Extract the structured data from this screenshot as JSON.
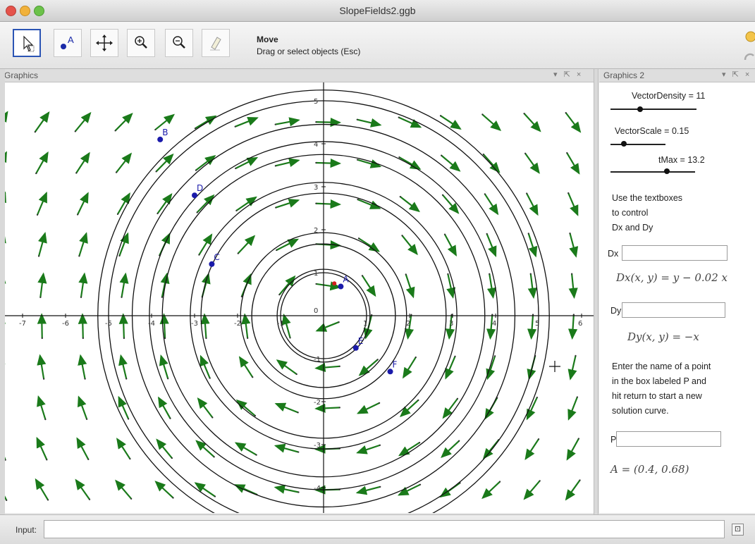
{
  "window": {
    "title": "SlopeFields2.ggb"
  },
  "toolbar": {
    "tools": [
      {
        "name": "move-tool",
        "icon": "arrow-pointer-icon",
        "active": true
      },
      {
        "name": "point-tool",
        "icon": "point-a-icon",
        "active": false
      },
      {
        "name": "move-graphics-view-tool",
        "icon": "move-cross-icon",
        "active": false
      },
      {
        "name": "zoom-in-tool",
        "icon": "zoom-in-icon",
        "active": false
      },
      {
        "name": "zoom-out-tool",
        "icon": "zoom-out-icon",
        "active": false
      },
      {
        "name": "eraser-tool",
        "icon": "eraser-icon",
        "active": false
      }
    ],
    "current_tool_label": "Move",
    "current_tool_help": "Drag or select objects (Esc)"
  },
  "graphics_panel": {
    "title": "Graphics",
    "controls": "▾ ⇱ ×",
    "x_ticks": [
      "-7",
      "-6",
      "-5",
      "-4",
      "-3",
      "-2",
      "-1",
      "1",
      "2",
      "3",
      "4",
      "5",
      "6"
    ],
    "y_ticks_pos": [
      "1",
      "2",
      "3",
      "4",
      "5"
    ],
    "y_ticks_neg": [
      "-1",
      "-2",
      "-3",
      "-4"
    ],
    "origin_label": "0",
    "points": [
      {
        "label": "A",
        "x": 0.4,
        "y": 0.68,
        "color": "#1a1aaa"
      },
      {
        "label": "B",
        "x": -3.8,
        "y": 4.1,
        "color": "#1a1aaa"
      },
      {
        "label": "D",
        "x": -3.0,
        "y": 2.8,
        "color": "#1a1aaa"
      },
      {
        "label": "C",
        "x": -2.6,
        "y": 1.2,
        "color": "#1a1aaa"
      },
      {
        "label": "E",
        "x": 0.75,
        "y": -0.75,
        "color": "#1a1aaa"
      },
      {
        "label": "F",
        "x": 1.55,
        "y": -1.3,
        "color": "#1a1aaa"
      }
    ],
    "orbit_radii": [
      1.0,
      1.08,
      1.67,
      1.93,
      2.85,
      3.1,
      3.75,
      4.05,
      4.45,
      5.0,
      5.25
    ],
    "vector_color": "#1a7a1a"
  },
  "graphics2_panel": {
    "title": "Graphics 2",
    "controls": "▾ ⇱ ×",
    "sliders": [
      {
        "label": "VectorDensity = 11",
        "value": 11,
        "min": 1,
        "max": 30
      },
      {
        "label": "VectorScale = 0.15",
        "value": 0.15,
        "min": 0,
        "max": 1
      },
      {
        "label": "tMax = 13.2",
        "value": 13.2,
        "min": 0,
        "max": 20
      }
    ],
    "instructions_1": [
      "Use the textboxes",
      "to control",
      "Dx and Dy"
    ],
    "dx_label": "Dx",
    "dx_formula": "Dx(x, y) = y − 0.02 x",
    "dy_label": "Dy",
    "dy_formula": "Dy(x, y) = −x",
    "instructions_2": [
      "Enter the name of a point",
      "in the box labeled P and",
      "hit return to start a new",
      "solution curve."
    ],
    "p_label": "P",
    "point_readout": "A = (0.4, 0.68)"
  },
  "input_bar": {
    "label": "Input:",
    "value": "",
    "button": "⊡"
  }
}
